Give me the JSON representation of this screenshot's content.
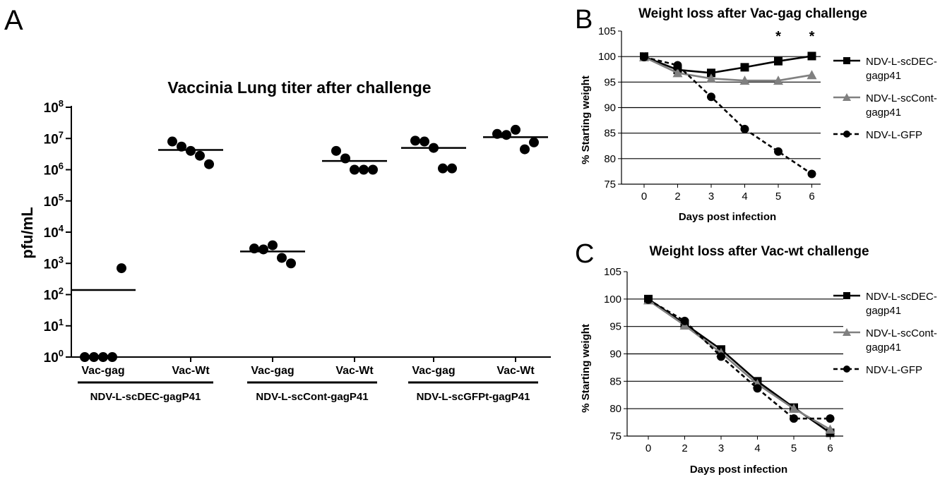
{
  "panels": {
    "a": {
      "letter": "A"
    },
    "b": {
      "letter": "B"
    },
    "c": {
      "letter": "C"
    }
  },
  "colors": {
    "black": "#000000",
    "gray": "#808080"
  },
  "chart_data": [
    {
      "type": "scatter",
      "title": "Vaccinia Lung titer after challenge",
      "ylabel": "pfu/mL",
      "y_scale": "log10",
      "ylim": [
        1,
        100000000
      ],
      "ytick_exponents": [
        "0",
        "1",
        "2",
        "3",
        "4",
        "5",
        "6",
        "7",
        "8"
      ],
      "ytick_base": "10",
      "categories": [
        "Vac-gag",
        "Vac-Wt",
        "Vac-gag",
        "Vac-Wt",
        "Vac-gag",
        "Vac-Wt"
      ],
      "groups": [
        {
          "label": "NDV-L-scDEC-gagP41",
          "categories": [
            0,
            1
          ]
        },
        {
          "label": "NDV-L-scCont-gagP41",
          "categories": [
            2,
            3
          ]
        },
        {
          "label": "NDV-L-scGFPt-gagP41",
          "categories": [
            4,
            5
          ]
        }
      ],
      "points": [
        {
          "category": 0,
          "values": [
            1,
            1,
            1,
            1,
            700
          ]
        },
        {
          "category": 1,
          "values": [
            8000000,
            5500000,
            4000000,
            2800000,
            1500000
          ]
        },
        {
          "category": 2,
          "values": [
            3000,
            2800,
            3800,
            1500,
            1000
          ]
        },
        {
          "category": 3,
          "values": [
            4000000,
            2300000,
            1000000,
            1000000,
            1000000
          ]
        },
        {
          "category": 4,
          "values": [
            8500000,
            8000000,
            5000000,
            1100000,
            1100000
          ]
        },
        {
          "category": 5,
          "values": [
            14000000,
            13000000,
            19000000,
            4500000,
            7500000
          ]
        }
      ],
      "means": [
        140,
        4300000,
        2400,
        1900000,
        5000000,
        11000000
      ]
    },
    {
      "type": "line",
      "title": "Weight loss after Vac-gag challenge",
      "xlabel": "Days post infection",
      "ylabel": "% Starting weight",
      "x": [
        0,
        2,
        3,
        4,
        5,
        6
      ],
      "ylim": [
        75,
        105
      ],
      "yticks": [
        75,
        80,
        85,
        90,
        95,
        100,
        105
      ],
      "grid": true,
      "legend_position": "right",
      "annotations": [
        {
          "x": 5,
          "text": "*"
        },
        {
          "x": 6,
          "text": "*"
        }
      ],
      "series": [
        {
          "name": "NDV-L-scDEC-gagp41",
          "color": "#000000",
          "marker": "square",
          "line": "solid",
          "values": [
            100,
            97.4,
            96.8,
            97.9,
            99.1,
            100.1
          ]
        },
        {
          "name": "NDV-L-scCont-gagp41",
          "color": "#808080",
          "marker": "triangle",
          "line": "solid",
          "values": [
            99.9,
            96.8,
            95.7,
            95.3,
            95.3,
            96.4
          ]
        },
        {
          "name": "NDV-L-GFP",
          "color": "#000000",
          "marker": "circle",
          "line": "dashed",
          "values": [
            99.9,
            98.3,
            92.1,
            85.8,
            81.4,
            77
          ]
        }
      ]
    },
    {
      "type": "line",
      "title": "Weight loss after Vac-wt challenge",
      "xlabel": "Days post infection",
      "ylabel": "% Starting weight",
      "x": [
        0,
        2,
        3,
        4,
        5,
        6
      ],
      "ylim": [
        75,
        105
      ],
      "yticks": [
        75,
        80,
        85,
        90,
        95,
        100,
        105
      ],
      "grid": true,
      "legend_position": "right",
      "series": [
        {
          "name": "NDV-L-scDEC-gagp41",
          "color": "#000000",
          "marker": "square",
          "line": "solid",
          "values": [
            100,
            95.5,
            90.8,
            85,
            80.2,
            75.6
          ]
        },
        {
          "name": "NDV-L-scCont-gagp41",
          "color": "#808080",
          "marker": "triangle",
          "line": "solid",
          "values": [
            99.8,
            95.2,
            90.2,
            84.5,
            80,
            76.2
          ]
        },
        {
          "name": "NDV-L-GFP",
          "color": "#000000",
          "marker": "circle",
          "line": "dashed",
          "values": [
            99.9,
            96,
            89.5,
            83.7,
            78.2,
            78.2
          ]
        }
      ]
    }
  ]
}
